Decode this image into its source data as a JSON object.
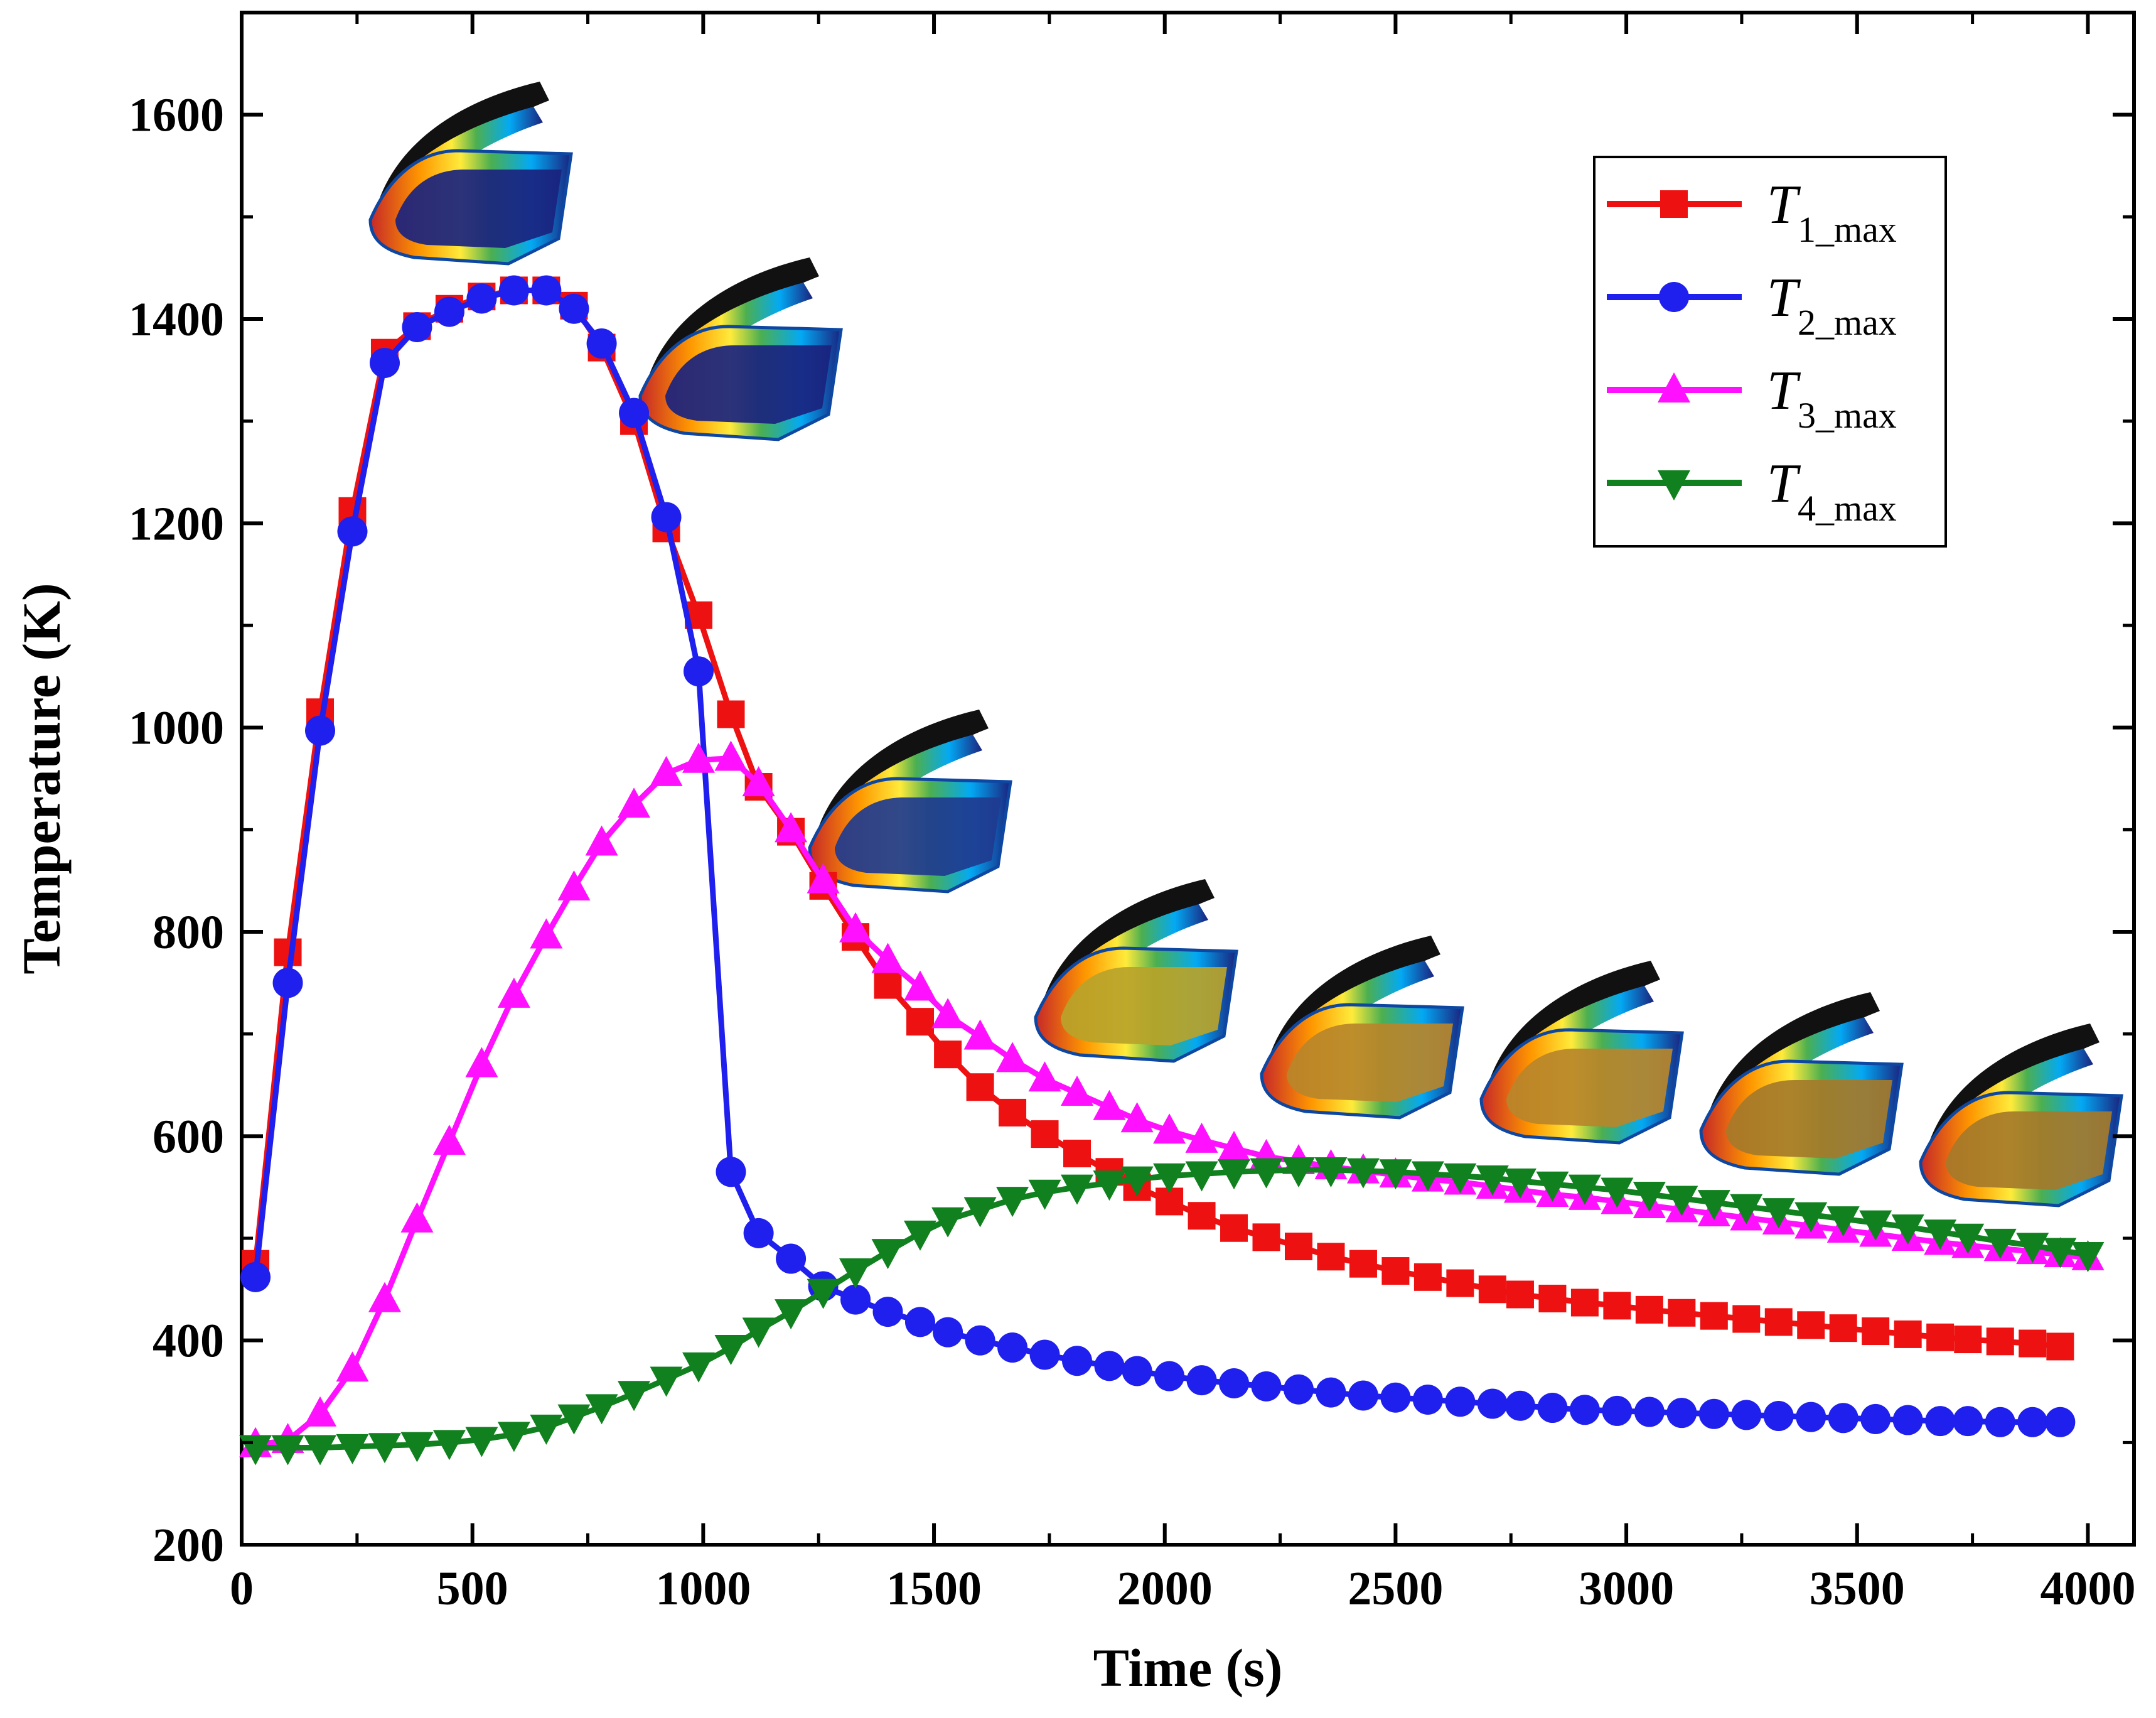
{
  "chart_data": {
    "type": "line",
    "title": "",
    "xlabel": "Time (s)",
    "ylabel": "Temperature (K)",
    "xlim": [
      0,
      4100
    ],
    "ylim": [
      200,
      1700
    ],
    "xticks": [
      0,
      500,
      1000,
      1500,
      2000,
      2500,
      3000,
      3500,
      4000
    ],
    "yticks": [
      200,
      400,
      600,
      800,
      1000,
      1200,
      1400,
      1600
    ],
    "xtick_labels": [
      "0",
      "500",
      "1000",
      "1500",
      "2000",
      "2500",
      "3000",
      "3500",
      "4000"
    ],
    "ytick_labels": [
      "200",
      "400",
      "600",
      "800",
      "1000",
      "1200",
      "1400",
      "1600"
    ],
    "legend_position": "top-right",
    "series": [
      {
        "name": "T1_max",
        "label_main": "T",
        "label_sub": "1_max",
        "color": "#ee1111",
        "marker": "square",
        "x": [
          30,
          100,
          170,
          240,
          310,
          380,
          450,
          520,
          590,
          660,
          720,
          780,
          850,
          920,
          990,
          1060,
          1120,
          1190,
          1260,
          1330,
          1400,
          1470,
          1530,
          1600,
          1670,
          1740,
          1810,
          1880,
          1940,
          2010,
          2080,
          2150,
          2220,
          2290,
          2360,
          2430,
          2500,
          2570,
          2640,
          2710,
          2770,
          2840,
          2910,
          2980,
          3050,
          3120,
          3190,
          3260,
          3330,
          3400,
          3470,
          3540,
          3610,
          3680,
          3740,
          3810,
          3880,
          3940
        ],
        "y": [
          475,
          780,
          1015,
          1212,
          1367,
          1393,
          1410,
          1422,
          1428,
          1428,
          1413,
          1372,
          1300,
          1195,
          1110,
          1013,
          942,
          898,
          845,
          795,
          748,
          712,
          680,
          648,
          623,
          602,
          583,
          565,
          550,
          536,
          522,
          510,
          501,
          492,
          482,
          475,
          468,
          462,
          456,
          450,
          445,
          441,
          437,
          434,
          430,
          427,
          424,
          421,
          418,
          415,
          412,
          409,
          406,
          403,
          401,
          399,
          397,
          394
        ]
      },
      {
        "name": "T2_max",
        "label_main": "T",
        "label_sub": "2_max",
        "color": "#1f1fee",
        "marker": "circle",
        "x": [
          30,
          100,
          170,
          240,
          310,
          380,
          450,
          520,
          590,
          660,
          720,
          780,
          850,
          920,
          990,
          1060,
          1120,
          1190,
          1260,
          1330,
          1400,
          1470,
          1530,
          1600,
          1670,
          1740,
          1810,
          1880,
          1940,
          2010,
          2080,
          2150,
          2220,
          2290,
          2360,
          2430,
          2500,
          2570,
          2640,
          2710,
          2770,
          2840,
          2910,
          2980,
          3050,
          3120,
          3190,
          3260,
          3330,
          3400,
          3470,
          3540,
          3610,
          3680,
          3740,
          3810,
          3880,
          3940
        ],
        "y": [
          462,
          750,
          997,
          1192,
          1357,
          1392,
          1407,
          1420,
          1428,
          1428,
          1410,
          1376,
          1308,
          1206,
          1055,
          565,
          505,
          480,
          453,
          440,
          428,
          418,
          408,
          400,
          393,
          386,
          380,
          375,
          370,
          365,
          361,
          358,
          355,
          352,
          349,
          346,
          344,
          342,
          340,
          338,
          336,
          334,
          332,
          331,
          330,
          329,
          328,
          327,
          326,
          325,
          324,
          323,
          322,
          321,
          321,
          320,
          320,
          320
        ]
      },
      {
        "name": "T3_max",
        "label_main": "T",
        "label_sub": "3_max",
        "color": "#ff11ff",
        "marker": "triangle-up",
        "x": [
          30,
          100,
          170,
          240,
          310,
          380,
          450,
          520,
          590,
          660,
          720,
          780,
          850,
          920,
          990,
          1060,
          1120,
          1190,
          1260,
          1330,
          1400,
          1470,
          1530,
          1600,
          1670,
          1740,
          1810,
          1880,
          1940,
          2010,
          2080,
          2150,
          2220,
          2290,
          2360,
          2430,
          2500,
          2570,
          2640,
          2710,
          2770,
          2840,
          2910,
          2980,
          3050,
          3120,
          3190,
          3260,
          3330,
          3400,
          3470,
          3540,
          3610,
          3680,
          3740,
          3810,
          3880,
          3940,
          4000
        ],
        "y": [
          298,
          302,
          328,
          372,
          440,
          518,
          594,
          670,
          738,
          796,
          843,
          887,
          924,
          955,
          968,
          970,
          945,
          900,
          850,
          802,
          772,
          745,
          718,
          697,
          675,
          656,
          642,
          628,
          616,
          605,
          596,
          588,
          580,
          575,
          570,
          566,
          562,
          558,
          555,
          551,
          547,
          543,
          540,
          536,
          532,
          528,
          524,
          520,
          516,
          512,
          508,
          504,
          500,
          496,
          493,
          490,
          487,
          484,
          481
        ]
      },
      {
        "name": "T4_max",
        "label_main": "T",
        "label_sub": "4_max",
        "color": "#11801f",
        "marker": "triangle-down",
        "x": [
          30,
          100,
          170,
          240,
          310,
          380,
          450,
          520,
          590,
          660,
          720,
          780,
          850,
          920,
          990,
          1060,
          1120,
          1190,
          1260,
          1330,
          1400,
          1470,
          1530,
          1600,
          1670,
          1740,
          1810,
          1880,
          1940,
          2010,
          2080,
          2150,
          2220,
          2290,
          2360,
          2430,
          2500,
          2570,
          2640,
          2710,
          2770,
          2840,
          2910,
          2980,
          3050,
          3120,
          3190,
          3260,
          3330,
          3400,
          3470,
          3540,
          3610,
          3680,
          3740,
          3810,
          3880,
          3940,
          4000
        ],
        "y": [
          295,
          295,
          295,
          296,
          297,
          298,
          300,
          303,
          308,
          315,
          325,
          335,
          348,
          362,
          376,
          393,
          410,
          428,
          448,
          468,
          487,
          505,
          518,
          528,
          538,
          545,
          550,
          554,
          558,
          561,
          563,
          565,
          566,
          567,
          567,
          566,
          565,
          563,
          561,
          559,
          556,
          553,
          550,
          547,
          543,
          539,
          535,
          531,
          527,
          523,
          519,
          515,
          511,
          506,
          502,
          497,
          493,
          488,
          484
        ]
      }
    ],
    "inset_images": [
      {
        "t": 1000,
        "top": "#1a237e",
        "legend": "contour-1"
      },
      {
        "t": 1400,
        "top": "#1a237e",
        "legend": "contour-2"
      },
      {
        "t": 1800,
        "top": "#1f3b8f",
        "legend": "contour-3"
      },
      {
        "t": 2200,
        "top": "#b8a32a",
        "legend": "contour-4"
      },
      {
        "t": 2600,
        "top": "#b8862a",
        "legend": "contour-5"
      },
      {
        "t": 3000,
        "top": "#b8862a",
        "legend": "contour-6"
      },
      {
        "t": 3400,
        "top": "#a57a2a",
        "legend": "contour-7"
      },
      {
        "t": 3800,
        "top": "#a57a2a",
        "legend": "contour-8"
      }
    ]
  }
}
